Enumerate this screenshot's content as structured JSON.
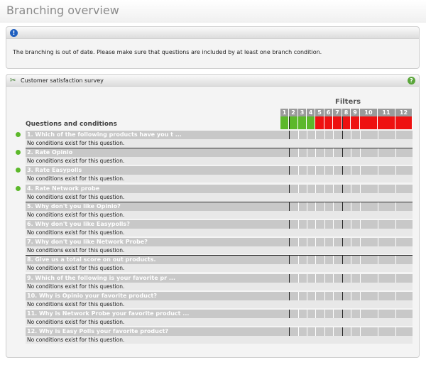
{
  "page": {
    "title": "Branching overview"
  },
  "info": {
    "message": "The branching is out of date. Please make sure that questions are included by at least one branch condition."
  },
  "survey": {
    "title": "Customer satisfaction survey",
    "filters_title": "Filters",
    "questions_title": "Questions and conditions",
    "filters": [
      {
        "label": "1",
        "status": "green"
      },
      {
        "label": "2",
        "status": "green"
      },
      {
        "label": "3",
        "status": "green"
      },
      {
        "label": "4",
        "status": "green"
      },
      {
        "label": "5",
        "status": "red"
      },
      {
        "label": "6",
        "status": "red"
      },
      {
        "label": "7",
        "status": "red"
      },
      {
        "label": "8",
        "status": "red"
      },
      {
        "label": "9",
        "status": "red"
      },
      {
        "label": "10",
        "status": "red"
      },
      {
        "label": "11",
        "status": "red"
      },
      {
        "label": "12",
        "status": "red"
      }
    ],
    "questions": [
      {
        "label": "1. Which of the following products have you t ...",
        "condition": "No conditions exist for this question.",
        "bullet": true
      },
      {
        "label": "2. Rate Opinio",
        "condition": "No conditions exist for this question.",
        "bullet": true
      },
      {
        "label": "3. Rate Easypolls",
        "condition": "No conditions exist for this question.",
        "bullet": true
      },
      {
        "label": "4. Rate Network probe",
        "condition": "No conditions exist for this question.",
        "bullet": true
      },
      {
        "label": "5. Why don't you like Opinio?",
        "condition": "No conditions exist for this question.",
        "bullet": false
      },
      {
        "label": "6. Why don't you like Easypolls?",
        "condition": "No conditions exist for this question.",
        "bullet": false
      },
      {
        "label": "7. Why don't you like Network Probe?",
        "condition": "No conditions exist for this question.",
        "bullet": false
      },
      {
        "label": "8. Give us a total score on out products.",
        "condition": "No conditions exist for this question.",
        "bullet": false
      },
      {
        "label": "9. Which of the following is your favorite pr ...",
        "condition": "No conditions exist for this question.",
        "bullet": false
      },
      {
        "label": "10. Why is Opinio your favorite product?",
        "condition": "No conditions exist for this question.",
        "bullet": false
      },
      {
        "label": "11. Why is Network Probe your favorite product ...",
        "condition": "No conditions exist for this question.",
        "bullet": false
      },
      {
        "label": "12. Why is Easy Polls your favorite product?",
        "condition": "No conditions exist for this question.",
        "bullet": false
      }
    ]
  }
}
